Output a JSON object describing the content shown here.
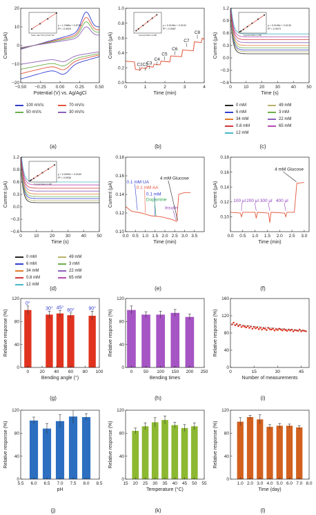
{
  "panels": [
    {
      "id": "a",
      "label": "(a)",
      "type": "line",
      "xlabel": "Potential (V) vs. Ag/AgCl",
      "ylabel": "Current (μA)",
      "xlim": [
        -0.5,
        0.5
      ],
      "ylim": [
        -20,
        20
      ],
      "xticks": [
        -0.5,
        -0.25,
        0,
        0.25,
        0.5
      ],
      "xticklabels": [
        "−0.50",
        "−0.25",
        "0.00",
        "0.25",
        "0.50"
      ],
      "yticks": [
        -20,
        -10,
        0,
        10,
        20
      ],
      "yticklabels": [
        "−20",
        "−10",
        "0",
        "10",
        "20"
      ],
      "inset": {
        "text1": "y = 1.2986x + 0.5705",
        "text2": "R² = 0.9929",
        "xlabel": "Scan rate^1/2 (mV/s)^1/2",
        "ylabel": "Current",
        "x": [
          5.5,
          7,
          8.4,
          10
        ],
        "y": [
          7.6,
          9.6,
          11.5,
          13.8
        ],
        "xlim": [
          5,
          10
        ],
        "ylim": [
          6,
          14
        ]
      },
      "series": [
        {
          "name": "100 mV/s",
          "color": "#2f3bd0",
          "scale": 1.0
        },
        {
          "name": "70 mV/s",
          "color": "#e4553a",
          "scale": 0.84
        },
        {
          "name": "50 mV/s",
          "color": "#6bb04a",
          "scale": 0.71
        },
        {
          "name": "30 mV/s",
          "color": "#8d5fb8",
          "scale": 0.56
        }
      ],
      "legend_cols": 2
    },
    {
      "id": "b",
      "label": "(b)",
      "type": "line",
      "xlabel": "Time (min)",
      "ylabel": "Current (μA)",
      "xlim": [
        0,
        4
      ],
      "ylim": [
        0,
        1
      ],
      "xticks": [
        0,
        1,
        2,
        3,
        4
      ],
      "xticklabels": [
        "0",
        "1",
        "2",
        "3",
        "4"
      ],
      "yticks": [
        0,
        0.2,
        0.4,
        0.6,
        0.8,
        1.0
      ],
      "yticklabels": [
        "0.0",
        "0.2",
        "0.4",
        "0.6",
        "0.8",
        "1.0"
      ],
      "inset": {
        "text1": "y = 0.0106x + 0.0132",
        "text2": "R² = 0.9987",
        "xlabel": "Concentration (mM)",
        "ylabel": "",
        "x": [
          5,
          10,
          20,
          30,
          40,
          50
        ],
        "y": [
          0.07,
          0.12,
          0.22,
          0.33,
          0.43,
          0.53
        ],
        "xlim": [
          0,
          60
        ],
        "ylim": [
          0,
          0.6
        ]
      },
      "steps": {
        "x": [
          0,
          0.5,
          0.8,
          1.1,
          1.45,
          1.8,
          2.3,
          2.9,
          3.5,
          3.9
        ],
        "y": [
          0.29,
          0.18,
          0.2,
          0.22,
          0.25,
          0.29,
          0.36,
          0.44,
          0.55,
          0.6
        ]
      },
      "annotations": [
        "C1",
        "C2",
        "C3",
        "C4",
        "C5",
        "C6",
        "C7",
        "C8"
      ],
      "ann_x": [
        0.72,
        1.0,
        1.2,
        1.6,
        1.98,
        2.5,
        3.1,
        3.65
      ],
      "ann_y": [
        0.19,
        0.19,
        0.21,
        0.26,
        0.33,
        0.4,
        0.51,
        0.62
      ],
      "color": "#e4553a"
    },
    {
      "id": "c",
      "label": "(c)",
      "type": "decay",
      "xlabel": "Time (s)",
      "ylabel": "Current (μA)",
      "xlim": [
        0,
        50
      ],
      "ylim": [
        -0.6,
        1.2
      ],
      "xticks": [
        0,
        10,
        20,
        30,
        40,
        50
      ],
      "xticklabels": [
        "0",
        "10",
        "20",
        "30",
        "40",
        "50"
      ],
      "yticks": [
        -0.6,
        -0.3,
        0,
        0.3,
        0.6,
        0.9,
        1.2
      ],
      "yticklabels": [
        "−0.6",
        "−0.3",
        "0.0",
        "0.3",
        "0.6",
        "0.9",
        "1.2"
      ],
      "inset": {
        "text1": "y = 0.0108x + 0.0135",
        "text2": "R² = 0.9973",
        "xlabel": "Concentration (mM)",
        "ylabel": "Current",
        "x": [
          3,
          6,
          12,
          22,
          34,
          49,
          65
        ],
        "y": [
          0.05,
          0.08,
          0.14,
          0.25,
          0.38,
          0.54,
          0.7
        ],
        "xlim": [
          0,
          70
        ],
        "ylim": [
          0,
          0.8
        ]
      },
      "levels": [
        0.0,
        0.05,
        0.09,
        0.14,
        0.2,
        0.27,
        0.34,
        0.41,
        0.48
      ],
      "series": [
        {
          "name": "0 mM",
          "color": "#222222"
        },
        {
          "name": "49 mM",
          "color": "#b8b26a"
        },
        {
          "name": "6 mM",
          "color": "#2f3bd0"
        },
        {
          "name": "3 mM",
          "color": "#6bb04a"
        },
        {
          "name": "34 mM",
          "color": "#e07a2c"
        },
        {
          "name": "22 mM",
          "color": "#8d5fb8"
        },
        {
          "name": "0.8 mM",
          "color": "#d3333a"
        },
        {
          "name": "65 mM",
          "color": "#b44bb0"
        },
        {
          "name": "12 mM",
          "color": "#46b7c8"
        }
      ],
      "legend_cols": 2
    },
    {
      "id": "d",
      "label": "(d)",
      "type": "decay",
      "xlabel": "Time (s)",
      "ylabel": "Current (μA)",
      "xlim": [
        0,
        50
      ],
      "ylim": [
        -0.6,
        1.2
      ],
      "xticks": [
        0,
        10,
        20,
        30,
        40,
        50
      ],
      "xticklabels": [
        "0",
        "10",
        "20",
        "30",
        "40",
        "50"
      ],
      "yticks": [
        -0.6,
        -0.3,
        0,
        0.3,
        0.6,
        0.9,
        1.2
      ],
      "yticklabels": [
        "−0.6",
        "−0.3",
        "0.0",
        "0.3",
        "0.6",
        "0.9",
        "1.2"
      ],
      "inset": {
        "text1": "y = 0.0099x + 0.0169",
        "text2": "R² = 0.9936",
        "xlabel": "Concentration (mM)",
        "ylabel": "Current",
        "x": [
          3,
          6,
          12,
          22,
          34,
          49,
          65
        ],
        "y": [
          0.05,
          0.08,
          0.14,
          0.24,
          0.36,
          0.5,
          0.66
        ],
        "xlim": [
          0,
          70
        ],
        "ylim": [
          0,
          0.8
        ]
      },
      "levels": [
        0.0,
        0.05,
        0.1,
        0.15,
        0.21,
        0.28,
        0.35,
        0.43,
        0.5
      ],
      "series": [
        {
          "name": "0 mM",
          "color": "#222222"
        },
        {
          "name": "49 mM",
          "color": "#b8b26a"
        },
        {
          "name": "6 mM",
          "color": "#2f3bd0"
        },
        {
          "name": "3 mM",
          "color": "#6bb04a"
        },
        {
          "name": "34 mM",
          "color": "#e07a2c"
        },
        {
          "name": "22 mM",
          "color": "#8d5fb8"
        },
        {
          "name": "0.8 mM",
          "color": "#d3333a"
        },
        {
          "name": "65 mM",
          "color": "#b44bb0"
        },
        {
          "name": "12 mM",
          "color": "#46b7c8"
        }
      ],
      "legend_cols": 2
    },
    {
      "id": "e",
      "label": "(e)",
      "type": "line",
      "xlabel": "Time (min)",
      "ylabel": "Current (μA)",
      "xlim": [
        0,
        4
      ],
      "ylim": [
        0.1,
        0.18
      ],
      "xticks": [
        0,
        0.5,
        1,
        1.5,
        2,
        2.5,
        3,
        3.5
      ],
      "xticklabels": [
        "0.0",
        "0.5",
        "1.0",
        "1.5",
        "2.0",
        "2.5",
        "3.0",
        "3.5"
      ],
      "yticks": [
        0.1,
        0.12,
        0.14,
        0.16,
        0.18
      ],
      "yticklabels": [
        "0.10",
        "0.12",
        "0.14",
        "0.16",
        "0.18"
      ],
      "trace": {
        "x": [
          0,
          0.3,
          0.8,
          1.3,
          1.8,
          2.2,
          2.5,
          2.6,
          2.7,
          3.0,
          3.3
        ],
        "y": [
          0.127,
          0.122,
          0.12,
          0.117,
          0.116,
          0.114,
          0.112,
          0.111,
          0.14,
          0.142,
          0.142
        ]
      },
      "color": "#e4553a",
      "notes": [
        {
          "text": "0.1 mM UA",
          "color": "#2f3bd0",
          "x": 0.05,
          "y": 0.152,
          "ax": 0.6,
          "ay": 0.123
        },
        {
          "text": "0.1 mM AA",
          "color": "#e4553a",
          "x": 0.55,
          "y": 0.146,
          "ax": 1.0,
          "ay": 0.12
        },
        {
          "text": "0.1 mM",
          "color": "#2f3bd0",
          "x": 1.05,
          "y": 0.139,
          "ax": 1.5,
          "ay": 0.117
        },
        {
          "text": "Dopamine",
          "color": "#2aa84a",
          "x": 1.05,
          "y": 0.133,
          "ax": 1.55,
          "ay": 0.117
        },
        {
          "text": "Insulin",
          "color": "#8d3fb8",
          "x": 2.0,
          "y": 0.124,
          "ax": 2.55,
          "ay": 0.113
        },
        {
          "text": "4 mM Glucose",
          "color": "#222222",
          "x": 1.75,
          "y": 0.156,
          "ax": 2.65,
          "ay": 0.112
        }
      ]
    },
    {
      "id": "f",
      "label": "(f)",
      "type": "line",
      "xlabel": "Time (min)",
      "ylabel": "Current (μA)",
      "xlim": [
        0,
        3.2
      ],
      "ylim": [
        0.08,
        0.18
      ],
      "xticks": [
        0,
        0.5,
        1,
        1.5,
        2,
        2.5,
        3
      ],
      "xticklabels": [
        "0.0",
        "0.5",
        "1.0",
        "1.5",
        "2.0",
        "2.5",
        "3.0"
      ],
      "yticks": [
        0.1,
        0.12,
        0.14,
        0.16,
        0.18
      ],
      "yticklabels": [
        "0.10",
        "0.12",
        "0.14",
        "0.16",
        "0.18"
      ],
      "trace": {
        "x": [
          0,
          0.4,
          0.45,
          0.5,
          1.0,
          1.05,
          1.1,
          1.55,
          1.6,
          1.65,
          2.2,
          2.25,
          2.3,
          2.6,
          2.7,
          3.0
        ],
        "y": [
          0.106,
          0.105,
          0.1,
          0.106,
          0.106,
          0.098,
          0.106,
          0.105,
          0.092,
          0.106,
          0.105,
          0.1,
          0.106,
          0.106,
          0.145,
          0.146
        ]
      },
      "color": "#e4553a",
      "notes": [
        {
          "text": "100 μl",
          "color": "#8d3fb8",
          "x": 0.12,
          "y": 0.12,
          "ax": 0.45,
          "ay": 0.108
        },
        {
          "text": "200 μl",
          "color": "#8d3fb8",
          "x": 0.65,
          "y": 0.12,
          "ax": 1.05,
          "ay": 0.108
        },
        {
          "text": "300 μl",
          "color": "#8d3fb8",
          "x": 1.2,
          "y": 0.12,
          "ax": 1.6,
          "ay": 0.108
        },
        {
          "text": "400 μl",
          "color": "#8d3fb8",
          "x": 1.85,
          "y": 0.12,
          "ax": 2.25,
          "ay": 0.108
        },
        {
          "text": "4 mM Glucose",
          "color": "#222222",
          "x": 1.8,
          "y": 0.162,
          "ax": 2.68,
          "ay": 0.147
        }
      ]
    },
    {
      "id": "g",
      "label": "(g)",
      "type": "bar",
      "xlabel": "Bending angle (°)",
      "ylabel": "Relative response (%)",
      "xlim": [
        -10,
        100
      ],
      "ylim": [
        0,
        120
      ],
      "xticks": [
        0,
        20,
        40,
        60,
        80,
        100
      ],
      "xticklabels": [
        "0",
        "20",
        "40",
        "60",
        "80",
        "100"
      ],
      "yticks": [
        0,
        40,
        80,
        120
      ],
      "yticklabels": [
        "0",
        "40",
        "80",
        "120"
      ],
      "x": [
        0,
        30,
        45,
        60,
        90
      ],
      "values": [
        100,
        92,
        94,
        91,
        90
      ],
      "errors": [
        7,
        6,
        5,
        4,
        8
      ],
      "barlabels": [
        "0°",
        "30°",
        "45°",
        "60°",
        "90°"
      ],
      "labelcolor": "#2f3bd0",
      "barwidth": 10,
      "color": "#e0331f"
    },
    {
      "id": "h",
      "label": "(h)",
      "type": "bar",
      "xlabel": "Bending times",
      "ylabel": "Relative response (%)",
      "xlim": [
        -20,
        250
      ],
      "ylim": [
        0,
        120
      ],
      "xticks": [
        0,
        50,
        100,
        150,
        200,
        250
      ],
      "xticklabels": [
        "0",
        "50",
        "100",
        "150",
        "200",
        "250"
      ],
      "yticks": [
        0,
        40,
        80,
        120
      ],
      "yticklabels": [
        "0",
        "40",
        "80",
        "120"
      ],
      "x": [
        0,
        50,
        100,
        150,
        200
      ],
      "values": [
        100,
        92,
        92,
        95,
        88
      ],
      "errors": [
        7,
        5,
        6,
        6,
        5
      ],
      "barlabels": [],
      "barwidth": 30,
      "color": "#a655c4"
    },
    {
      "id": "i",
      "label": "(i)",
      "type": "scatter",
      "xlabel": "Number of measurements",
      "ylabel": "Relative response (%)",
      "xlim": [
        0,
        50
      ],
      "ylim": [
        0,
        160
      ],
      "xticks": [
        0,
        15,
        30,
        45
      ],
      "xticklabels": [
        "0",
        "15",
        "30",
        "45"
      ],
      "yticks": [
        0,
        40,
        80,
        120,
        160
      ],
      "yticklabels": [
        "0",
        "40",
        "80",
        "120",
        "160"
      ],
      "x": [
        1,
        2,
        3,
        4,
        5,
        6,
        7,
        8,
        9,
        10,
        11,
        12,
        13,
        14,
        15,
        16,
        17,
        18,
        19,
        20,
        21,
        22,
        23,
        24,
        25,
        26,
        27,
        28,
        29,
        30,
        31,
        32,
        33,
        34,
        35,
        36,
        37,
        38,
        39,
        40,
        41,
        42,
        43,
        44,
        45,
        46,
        47,
        48
      ],
      "values": [
        100,
        104,
        98,
        101,
        96,
        99,
        94,
        97,
        95,
        93,
        96,
        92,
        95,
        90,
        94,
        91,
        93,
        89,
        92,
        88,
        91,
        90,
        87,
        92,
        89,
        88,
        90,
        86,
        89,
        87,
        90,
        88,
        86,
        89,
        87,
        85,
        88,
        86,
        88,
        84,
        87,
        86,
        85,
        88,
        84,
        86,
        85,
        84
      ],
      "color": "#e0331f"
    },
    {
      "id": "j",
      "label": "(j)",
      "type": "bar",
      "xlabel": "pH",
      "ylabel": "Relative response (%)",
      "xlim": [
        5.5,
        8.5
      ],
      "ylim": [
        0,
        120
      ],
      "xticks": [
        5.5,
        6,
        6.5,
        7,
        7.5,
        8,
        8.5
      ],
      "xticklabels": [
        "5.5",
        "6.0",
        "6.5",
        "7.0",
        "7.5",
        "8.0",
        "8.5"
      ],
      "yticks": [
        0,
        40,
        80,
        120
      ],
      "yticklabels": [
        "0",
        "40",
        "80",
        "120"
      ],
      "x": [
        6,
        6.5,
        7,
        7.5,
        8
      ],
      "values": [
        102,
        88,
        101,
        109,
        108
      ],
      "errors": [
        6,
        9,
        11,
        12,
        6
      ],
      "barlabels": [],
      "barwidth": 0.32,
      "color": "#2c6fc0"
    },
    {
      "id": "k",
      "label": "(k)",
      "type": "bar",
      "xlabel": "Temperature (°C)",
      "ylabel": "Relative response (%)",
      "xlim": [
        15,
        55
      ],
      "ylim": [
        0,
        120
      ],
      "xticks": [
        15,
        20,
        25,
        30,
        35,
        40,
        45,
        50,
        55
      ],
      "xticklabels": [
        "15",
        "20",
        "25",
        "30",
        "35",
        "40",
        "45",
        "50",
        "55"
      ],
      "yticks": [
        0,
        40,
        80,
        120
      ],
      "yticklabels": [
        "0",
        "40",
        "80",
        "120"
      ],
      "x": [
        20,
        25,
        30,
        35,
        40,
        45,
        50
      ],
      "values": [
        84,
        92,
        99,
        103,
        94,
        89,
        92
      ],
      "errors": [
        5,
        6,
        8,
        7,
        5,
        6,
        6
      ],
      "barlabels": [],
      "barwidth": 3.4,
      "color": "#8cb832"
    },
    {
      "id": "l",
      "label": "(l)",
      "type": "bar",
      "xlabel": "Time (day)",
      "ylabel": "Relative response (%)",
      "xlim": [
        0,
        8
      ],
      "ylim": [
        0,
        120
      ],
      "xticks": [
        1,
        2,
        3,
        4,
        5,
        6,
        7,
        8
      ],
      "xticklabels": [
        "1.0",
        "2.0",
        "3.0",
        "4.0",
        "5.0",
        "6.0",
        "7.0",
        "8.0"
      ],
      "yticks": [
        0,
        40,
        80,
        120
      ],
      "yticklabels": [
        "0",
        "40",
        "80",
        "120"
      ],
      "x": [
        1,
        2,
        3,
        4,
        5,
        6,
        7
      ],
      "values": [
        100,
        108,
        104,
        91,
        93,
        93,
        90
      ],
      "errors": [
        7,
        3,
        8,
        4,
        4,
        3,
        3
      ],
      "barlabels": [],
      "barwidth": 0.65,
      "color": "#d2601e"
    }
  ]
}
